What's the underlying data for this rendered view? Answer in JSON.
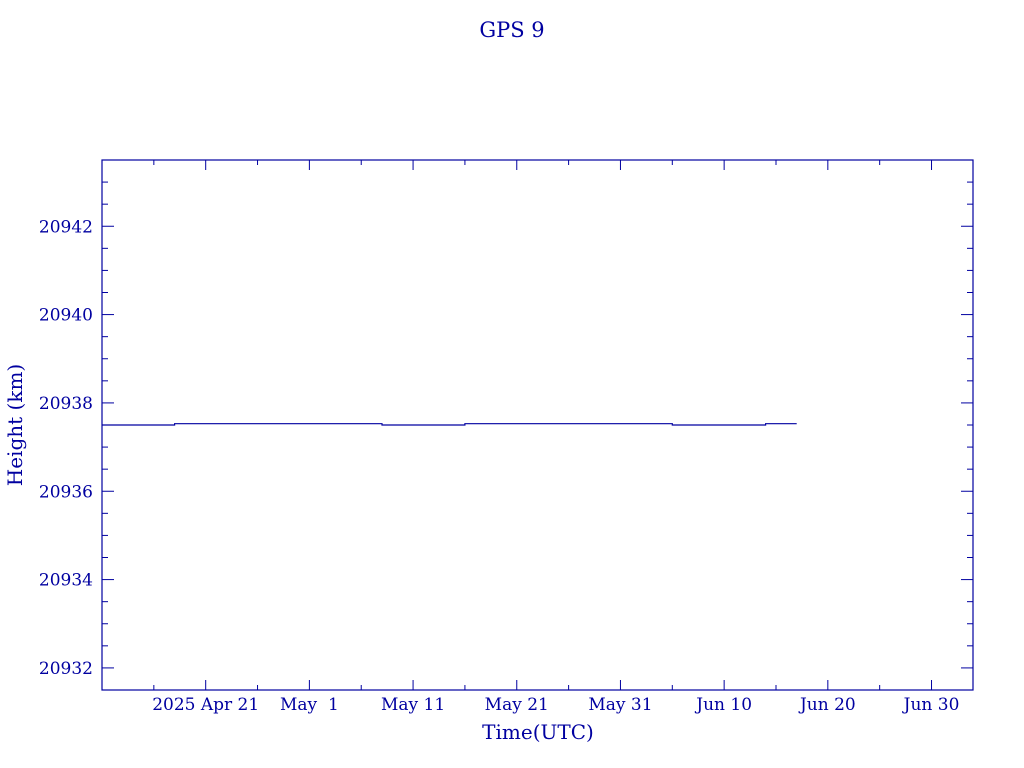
{
  "chart_data": {
    "type": "line",
    "title": "GPS 9",
    "xlabel": "Time(UTC)",
    "ylabel": "Height (km)",
    "x_type": "date",
    "xlim": [
      "2025-04-11",
      "2025-07-04"
    ],
    "ylim": [
      20931.5,
      20943.5
    ],
    "x_ticks": [
      {
        "date": "2025-04-21",
        "label": "2025 Apr 21"
      },
      {
        "date": "2025-05-01",
        "label": "May  1"
      },
      {
        "date": "2025-05-11",
        "label": "May 11"
      },
      {
        "date": "2025-05-21",
        "label": "May 21"
      },
      {
        "date": "2025-05-31",
        "label": "May 31"
      },
      {
        "date": "2025-06-10",
        "label": "Jun 10"
      },
      {
        "date": "2025-06-20",
        "label": "Jun 20"
      },
      {
        "date": "2025-06-30",
        "label": "Jun 30"
      }
    ],
    "y_ticks": [
      20932,
      20934,
      20936,
      20938,
      20940,
      20942
    ],
    "grid": false,
    "series": [
      {
        "color": "#0000a0",
        "points": [
          {
            "x": "2025-04-11",
            "y": 20937.5
          },
          {
            "x": "2025-04-18",
            "y": 20937.5
          },
          {
            "x": "2025-04-18",
            "y": 20937.53
          },
          {
            "x": "2025-05-08",
            "y": 20937.53
          },
          {
            "x": "2025-05-08",
            "y": 20937.5
          },
          {
            "x": "2025-05-16",
            "y": 20937.5
          },
          {
            "x": "2025-05-16",
            "y": 20937.53
          },
          {
            "x": "2025-06-05",
            "y": 20937.53
          },
          {
            "x": "2025-06-05",
            "y": 20937.5
          },
          {
            "x": "2025-06-14",
            "y": 20937.5
          },
          {
            "x": "2025-06-14",
            "y": 20937.53
          },
          {
            "x": "2025-06-17",
            "y": 20937.53
          }
        ]
      }
    ]
  }
}
